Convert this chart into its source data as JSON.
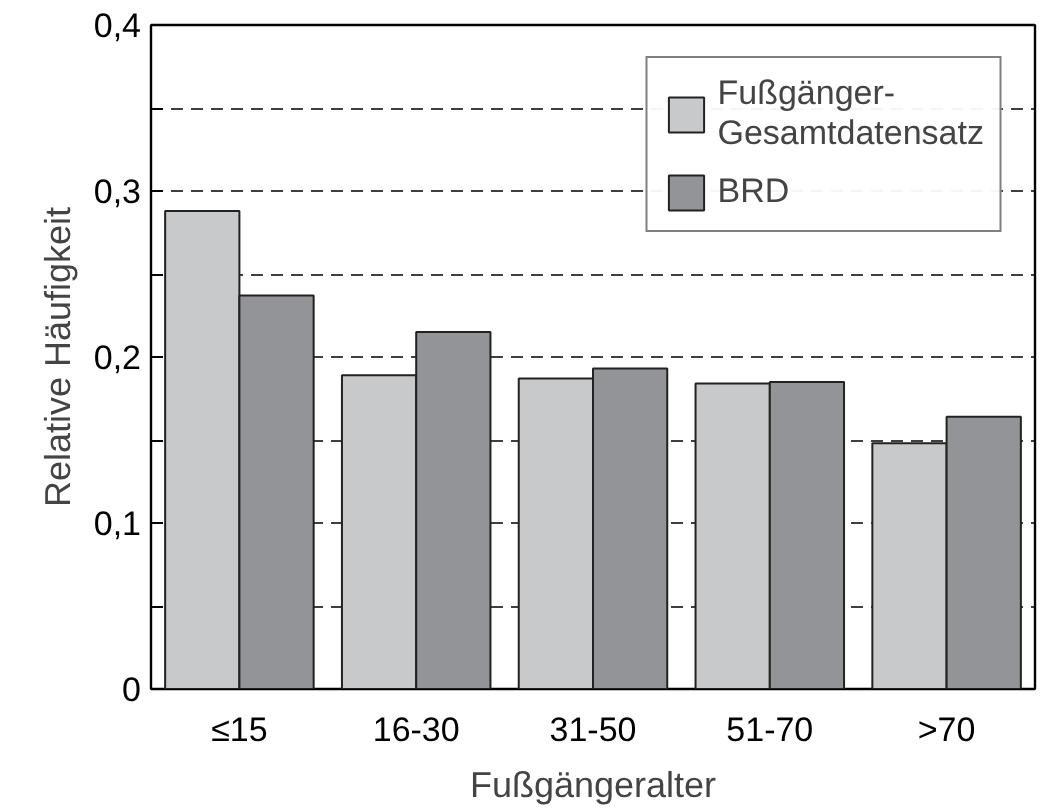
{
  "chart_data": {
    "type": "bar",
    "xlabel": "Fußgängeralter",
    "ylabel": "Relative Häufigkeit",
    "categories": [
      "≤15",
      "16-30",
      "31-50",
      "51-70",
      ">70"
    ],
    "series": [
      {
        "name": "Fußgänger-\nGesamtdatensatz",
        "color": "#c8c9cb",
        "values": [
          0.288,
          0.189,
          0.187,
          0.184,
          0.148
        ]
      },
      {
        "name": "BRD",
        "color": "#939497",
        "values": [
          0.237,
          0.215,
          0.193,
          0.185,
          0.164
        ]
      }
    ],
    "ylim": [
      0,
      0.4
    ],
    "yticks": [
      {
        "value": 0,
        "label": "0"
      },
      {
        "value": 0.05,
        "label": null
      },
      {
        "value": 0.1,
        "label": "0,1"
      },
      {
        "value": 0.15,
        "label": null
      },
      {
        "value": 0.2,
        "label": "0,2"
      },
      {
        "value": 0.25,
        "label": null
      },
      {
        "value": 0.3,
        "label": "0,3"
      },
      {
        "value": 0.35,
        "label": null
      },
      {
        "value": 0.4,
        "label": "0,4"
      }
    ],
    "grid": "y",
    "legend": "top right"
  }
}
